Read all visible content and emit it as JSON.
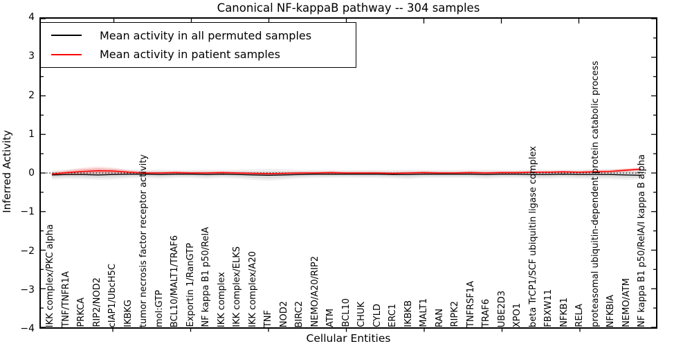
{
  "title": "Canonical NF-kappaB pathway -- 304 samples",
  "axes": {
    "ylabel": "Inferred Activity",
    "xlabel": "Cellular Entities",
    "ytick_labels": [
      "4",
      "3",
      "2",
      "1",
      "0",
      "−1",
      "−2",
      "−3",
      "−4"
    ]
  },
  "legend": {
    "items": [
      {
        "label": "Mean activity in all permuted samples",
        "color": "#000000"
      },
      {
        "label": "Mean activity in patient samples",
        "color": "#ff0000"
      }
    ]
  },
  "chart_data": {
    "type": "line",
    "title": "Canonical NF-kappaB pathway -- 304 samples",
    "xlabel": "Cellular Entities",
    "ylabel": "Inferred Activity",
    "ylim": [
      -4,
      4
    ],
    "yticks": [
      4,
      3,
      2,
      1,
      0,
      -1,
      -2,
      -3,
      -4
    ],
    "grid": false,
    "legend_position": "upper left",
    "top_tick_categories": [
      4,
      9,
      14,
      19,
      24,
      29,
      34
    ],
    "categories": [
      "IKK complex/PKC alpha",
      "TNF/TNFR1A",
      "PRKCA",
      "RIP2/NOD2",
      "cIAP1/UbcH5C",
      "IKBKG",
      "tumor necrosis factor receptor activity",
      "mol:GTP",
      "BCL10/MALT1/TRAF6",
      "Exportin 1/RanGTP",
      "NF kappa B1 p50/RelA",
      "IKK complex",
      "IKK complex/ELKS",
      "IKK complex/A20",
      "TNF",
      "NOD2",
      "BIRC2",
      "NEMO/A20/RIP2",
      "ATM",
      "BCL10",
      "CHUK",
      "CYLD",
      "ERC1",
      "IKBKB",
      "MALT1",
      "RAN",
      "RIPK2",
      "TNFRSF1A",
      "TRAF6",
      "UBE2D3",
      "XPO1",
      "beta TrCP1/SCF ubiquitin ligase complex",
      "FBXW11",
      "NFKB1",
      "RELA",
      "proteasomal ubiquitin-dependent protein catabolic process",
      "NFKBIA",
      "NEMO/ATM",
      "NF kappa B1 p50/RelA/I kappa B alpha"
    ],
    "series": [
      {
        "name": "Mean activity in all permuted samples",
        "color": "#000000",
        "values": [
          -0.05,
          -0.04,
          -0.04,
          -0.05,
          -0.04,
          -0.03,
          -0.03,
          -0.04,
          -0.03,
          -0.03,
          -0.04,
          -0.03,
          -0.04,
          -0.05,
          -0.06,
          -0.05,
          -0.04,
          -0.03,
          -0.03,
          -0.03,
          -0.03,
          -0.03,
          -0.04,
          -0.04,
          -0.03,
          -0.03,
          -0.03,
          -0.03,
          -0.04,
          -0.03,
          -0.03,
          -0.04,
          -0.04,
          -0.03,
          -0.04,
          -0.04,
          -0.04,
          -0.05,
          -0.06
        ]
      },
      {
        "name": "Mean activity in patient samples",
        "color": "#ff0000",
        "values": [
          -0.03,
          0.01,
          0.04,
          0.06,
          0.05,
          0.02,
          0.0,
          0.0,
          0.01,
          0.0,
          0.0,
          0.01,
          0.0,
          -0.01,
          -0.02,
          -0.01,
          0.0,
          0.0,
          0.01,
          0.0,
          0.0,
          0.0,
          -0.01,
          0.0,
          0.01,
          0.0,
          0.0,
          0.01,
          0.0,
          0.01,
          0.01,
          0.02,
          0.02,
          0.03,
          0.02,
          0.03,
          0.04,
          0.07,
          0.1
        ]
      }
    ],
    "bands": [
      {
        "name": "permuted",
        "color": "#888888",
        "upper": [
          0.07,
          0.09,
          0.11,
          0.12,
          0.11,
          0.09,
          0.08,
          0.09,
          0.08,
          0.08,
          0.09,
          0.08,
          0.09,
          0.1,
          0.11,
          0.1,
          0.08,
          0.08,
          0.08,
          0.07,
          0.08,
          0.08,
          0.08,
          0.09,
          0.08,
          0.08,
          0.08,
          0.08,
          0.09,
          0.08,
          0.08,
          0.09,
          0.09,
          0.08,
          0.09,
          0.1,
          0.1,
          0.11,
          0.1
        ],
        "lower": [
          -0.17,
          -0.15,
          -0.16,
          -0.18,
          -0.17,
          -0.14,
          -0.13,
          -0.15,
          -0.13,
          -0.13,
          -0.15,
          -0.13,
          -0.15,
          -0.18,
          -0.2,
          -0.17,
          -0.14,
          -0.13,
          -0.13,
          -0.12,
          -0.13,
          -0.13,
          -0.14,
          -0.16,
          -0.13,
          -0.13,
          -0.13,
          -0.13,
          -0.15,
          -0.13,
          -0.13,
          -0.15,
          -0.15,
          -0.13,
          -0.15,
          -0.16,
          -0.16,
          -0.18,
          -0.16
        ]
      },
      {
        "name": "patient",
        "color": "#ff3333",
        "upper": [
          0.02,
          0.08,
          0.14,
          0.17,
          0.14,
          0.08,
          0.04,
          0.04,
          0.05,
          0.04,
          0.04,
          0.05,
          0.04,
          0.03,
          0.02,
          0.03,
          0.04,
          0.04,
          0.05,
          0.04,
          0.04,
          0.04,
          0.03,
          0.04,
          0.05,
          0.04,
          0.04,
          0.05,
          0.04,
          0.05,
          0.05,
          0.06,
          0.06,
          0.07,
          0.06,
          0.08,
          0.09,
          0.12,
          0.15
        ],
        "lower": [
          -0.08,
          -0.06,
          -0.06,
          -0.05,
          -0.05,
          -0.04,
          -0.04,
          -0.04,
          -0.03,
          -0.04,
          -0.04,
          -0.03,
          -0.04,
          -0.05,
          -0.06,
          -0.05,
          -0.04,
          -0.04,
          -0.03,
          -0.04,
          -0.04,
          -0.04,
          -0.05,
          -0.04,
          -0.03,
          -0.04,
          -0.04,
          -0.03,
          -0.04,
          -0.03,
          -0.03,
          -0.02,
          -0.02,
          -0.01,
          -0.02,
          -0.01,
          0.0,
          0.02,
          0.05
        ]
      }
    ],
    "zero_line": {
      "y": 0,
      "style": "dotted",
      "color": "#000000"
    }
  }
}
